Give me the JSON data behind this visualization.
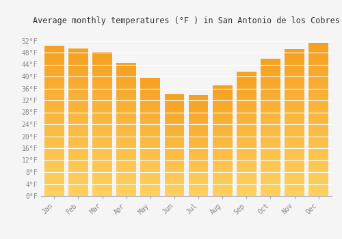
{
  "title": "Average monthly temperatures (°F ) in San Antonio de los Cobres",
  "months": [
    "Jan",
    "Feb",
    "Mar",
    "Apr",
    "May",
    "Jun",
    "Jul",
    "Aug",
    "Sep",
    "Oct",
    "Nov",
    "Dec"
  ],
  "values": [
    50.2,
    49.3,
    48.2,
    44.6,
    39.6,
    34.0,
    33.8,
    37.0,
    41.5,
    46.0,
    49.1,
    51.1
  ],
  "bar_color_top": "#F5A623",
  "bar_color_bottom": "#FFD060",
  "ylim": [
    0,
    56
  ],
  "yticks": [
    0,
    4,
    8,
    12,
    16,
    20,
    24,
    28,
    32,
    36,
    40,
    44,
    48,
    52
  ],
  "ytick_labels": [
    "0°F",
    "4°F",
    "8°F",
    "12°F",
    "16°F",
    "20°F",
    "24°F",
    "28°F",
    "32°F",
    "36°F",
    "40°F",
    "44°F",
    "48°F",
    "52°F"
  ],
  "background_color": "#f5f5f5",
  "grid_color": "#ffffff",
  "title_fontsize": 8.5,
  "tick_fontsize": 7,
  "font_family": "monospace",
  "bar_width": 0.82
}
